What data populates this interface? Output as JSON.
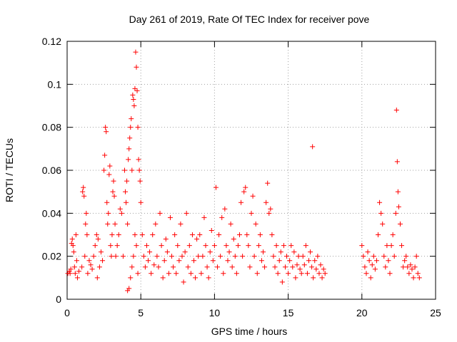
{
  "chart_data": {
    "type": "scatter",
    "title": "Day 261 of 2019, Rate Of TEC Index for receiver pove",
    "xlabel": "GPS time / hours",
    "ylabel": "ROTI / TECUs",
    "xlim": [
      0,
      25
    ],
    "ylim": [
      0,
      0.12
    ],
    "x_ticks": [
      "0",
      "5",
      "10",
      "15",
      "20",
      "25"
    ],
    "y_ticks": [
      "0",
      "0.02",
      "0.04",
      "0.06",
      "0.08",
      "0.1",
      "0.12"
    ],
    "grid": true,
    "marker": "+",
    "color": "#ff0000",
    "series": [
      {
        "points": [
          [
            0.05,
            0.012
          ],
          [
            0.15,
            0.013
          ],
          [
            0.2,
            0.012
          ],
          [
            0.25,
            0.014
          ],
          [
            0.3,
            0.026
          ],
          [
            0.35,
            0.028
          ],
          [
            0.4,
            0.025
          ],
          [
            0.45,
            0.022
          ],
          [
            0.5,
            0.015
          ],
          [
            0.55,
            0.012
          ],
          [
            0.6,
            0.03
          ],
          [
            0.65,
            0.018
          ],
          [
            0.7,
            0.01
          ],
          [
            0.8,
            0.013
          ],
          [
            1.0,
            0.015
          ],
          [
            1.05,
            0.05
          ],
          [
            1.1,
            0.052
          ],
          [
            1.15,
            0.048
          ],
          [
            1.2,
            0.02
          ],
          [
            1.25,
            0.035
          ],
          [
            1.3,
            0.04
          ],
          [
            1.35,
            0.03
          ],
          [
            1.4,
            0.012
          ],
          [
            1.5,
            0.018
          ],
          [
            1.6,
            0.016
          ],
          [
            1.7,
            0.014
          ],
          [
            1.8,
            0.02
          ],
          [
            1.9,
            0.025
          ],
          [
            2.0,
            0.03
          ],
          [
            2.05,
            0.01
          ],
          [
            2.1,
            0.028
          ],
          [
            2.2,
            0.015
          ],
          [
            2.3,
            0.022
          ],
          [
            2.4,
            0.018
          ],
          [
            2.5,
            0.06
          ],
          [
            2.55,
            0.067
          ],
          [
            2.6,
            0.08
          ],
          [
            2.65,
            0.078
          ],
          [
            2.7,
            0.045
          ],
          [
            2.75,
            0.035
          ],
          [
            2.8,
            0.04
          ],
          [
            2.85,
            0.058
          ],
          [
            2.9,
            0.062
          ],
          [
            2.95,
            0.025
          ],
          [
            3.0,
            0.02
          ],
          [
            3.05,
            0.03
          ],
          [
            3.1,
            0.05
          ],
          [
            3.15,
            0.055
          ],
          [
            3.2,
            0.048
          ],
          [
            3.25,
            0.035
          ],
          [
            3.3,
            0.02
          ],
          [
            3.4,
            0.025
          ],
          [
            3.5,
            0.03
          ],
          [
            3.6,
            0.042
          ],
          [
            3.7,
            0.04
          ],
          [
            3.8,
            0.02
          ],
          [
            3.9,
            0.06
          ],
          [
            3.95,
            0.05
          ],
          [
            4.0,
            0.045
          ],
          [
            4.05,
            0.055
          ],
          [
            4.1,
            0.035
          ],
          [
            4.15,
            0.065
          ],
          [
            4.2,
            0.07
          ],
          [
            4.25,
            0.075
          ],
          [
            4.3,
            0.08
          ],
          [
            4.35,
            0.084
          ],
          [
            4.4,
            0.06
          ],
          [
            4.45,
            0.095
          ],
          [
            4.5,
            0.093
          ],
          [
            4.55,
            0.09
          ],
          [
            4.6,
            0.098
          ],
          [
            4.65,
            0.115
          ],
          [
            4.7,
            0.108
          ],
          [
            4.75,
            0.097
          ],
          [
            4.8,
            0.08
          ],
          [
            4.85,
            0.065
          ],
          [
            4.9,
            0.06
          ],
          [
            4.95,
            0.055
          ],
          [
            4.1,
            0.004
          ],
          [
            4.2,
            0.005
          ],
          [
            4.3,
            0.01
          ],
          [
            4.4,
            0.015
          ],
          [
            4.5,
            0.02
          ],
          [
            4.6,
            0.03
          ],
          [
            4.7,
            0.025
          ],
          [
            4.8,
            0.012
          ],
          [
            5.0,
            0.045
          ],
          [
            5.1,
            0.03
          ],
          [
            5.2,
            0.02
          ],
          [
            5.3,
            0.015
          ],
          [
            5.4,
            0.025
          ],
          [
            5.5,
            0.018
          ],
          [
            5.6,
            0.022
          ],
          [
            5.7,
            0.012
          ],
          [
            5.8,
            0.03
          ],
          [
            5.9,
            0.016
          ],
          [
            6.0,
            0.035
          ],
          [
            6.1,
            0.02
          ],
          [
            6.2,
            0.015
          ],
          [
            6.3,
            0.04
          ],
          [
            6.4,
            0.025
          ],
          [
            6.5,
            0.01
          ],
          [
            6.6,
            0.018
          ],
          [
            6.7,
            0.028
          ],
          [
            6.8,
            0.022
          ],
          [
            6.9,
            0.012
          ],
          [
            7.0,
            0.038
          ],
          [
            7.1,
            0.02
          ],
          [
            7.2,
            0.015
          ],
          [
            7.3,
            0.03
          ],
          [
            7.4,
            0.012
          ],
          [
            7.5,
            0.025
          ],
          [
            7.6,
            0.018
          ],
          [
            7.7,
            0.035
          ],
          [
            7.8,
            0.02
          ],
          [
            7.9,
            0.008
          ],
          [
            8.0,
            0.022
          ],
          [
            8.1,
            0.04
          ],
          [
            8.2,
            0.015
          ],
          [
            8.3,
            0.025
          ],
          [
            8.4,
            0.012
          ],
          [
            8.5,
            0.03
          ],
          [
            8.6,
            0.018
          ],
          [
            8.7,
            0.01
          ],
          [
            8.8,
            0.028
          ],
          [
            8.9,
            0.02
          ],
          [
            9.0,
            0.03
          ],
          [
            9.1,
            0.012
          ],
          [
            9.2,
            0.02
          ],
          [
            9.3,
            0.038
          ],
          [
            9.4,
            0.025
          ],
          [
            9.5,
            0.015
          ],
          [
            9.6,
            0.01
          ],
          [
            9.7,
            0.022
          ],
          [
            9.8,
            0.032
          ],
          [
            9.9,
            0.018
          ],
          [
            10.0,
            0.025
          ],
          [
            10.1,
            0.052
          ],
          [
            10.2,
            0.015
          ],
          [
            10.3,
            0.03
          ],
          [
            10.4,
            0.02
          ],
          [
            10.5,
            0.038
          ],
          [
            10.6,
            0.012
          ],
          [
            10.7,
            0.042
          ],
          [
            10.8,
            0.025
          ],
          [
            10.9,
            0.018
          ],
          [
            11.0,
            0.022
          ],
          [
            11.1,
            0.035
          ],
          [
            11.2,
            0.015
          ],
          [
            11.3,
            0.028
          ],
          [
            11.4,
            0.02
          ],
          [
            11.5,
            0.012
          ],
          [
            11.6,
            0.025
          ],
          [
            11.7,
            0.03
          ],
          [
            11.8,
            0.045
          ],
          [
            11.9,
            0.02
          ],
          [
            12.0,
            0.05
          ],
          [
            12.1,
            0.052
          ],
          [
            12.2,
            0.03
          ],
          [
            12.3,
            0.025
          ],
          [
            12.4,
            0.015
          ],
          [
            12.5,
            0.04
          ],
          [
            12.6,
            0.048
          ],
          [
            12.7,
            0.02
          ],
          [
            12.8,
            0.035
          ],
          [
            12.9,
            0.012
          ],
          [
            13.0,
            0.025
          ],
          [
            13.1,
            0.03
          ],
          [
            13.2,
            0.018
          ],
          [
            13.3,
            0.022
          ],
          [
            13.4,
            0.015
          ],
          [
            13.5,
            0.045
          ],
          [
            13.6,
            0.054
          ],
          [
            13.7,
            0.04
          ],
          [
            13.8,
            0.042
          ],
          [
            13.9,
            0.03
          ],
          [
            14.0,
            0.02
          ],
          [
            14.1,
            0.015
          ],
          [
            14.2,
            0.025
          ],
          [
            14.3,
            0.012
          ],
          [
            14.4,
            0.018
          ],
          [
            14.5,
            0.022
          ],
          [
            14.6,
            0.008
          ],
          [
            14.7,
            0.025
          ],
          [
            14.8,
            0.015
          ],
          [
            14.9,
            0.02
          ],
          [
            15.0,
            0.012
          ],
          [
            15.1,
            0.018
          ],
          [
            15.2,
            0.025
          ],
          [
            15.3,
            0.015
          ],
          [
            15.4,
            0.022
          ],
          [
            15.5,
            0.01
          ],
          [
            15.6,
            0.016
          ],
          [
            15.7,
            0.02
          ],
          [
            15.8,
            0.014
          ],
          [
            15.9,
            0.012
          ],
          [
            16.0,
            0.02
          ],
          [
            16.1,
            0.016
          ],
          [
            16.2,
            0.025
          ],
          [
            16.3,
            0.012
          ],
          [
            16.4,
            0.018
          ],
          [
            16.5,
            0.022
          ],
          [
            16.6,
            0.015
          ],
          [
            16.65,
            0.071
          ],
          [
            16.7,
            0.01
          ],
          [
            16.8,
            0.018
          ],
          [
            16.9,
            0.014
          ],
          [
            17.0,
            0.02
          ],
          [
            17.1,
            0.012
          ],
          [
            17.2,
            0.016
          ],
          [
            17.3,
            0.01
          ],
          [
            17.4,
            0.014
          ],
          [
            17.5,
            0.012
          ],
          [
            20.0,
            0.025
          ],
          [
            20.1,
            0.02
          ],
          [
            20.2,
            0.015
          ],
          [
            20.3,
            0.012
          ],
          [
            20.4,
            0.022
          ],
          [
            20.5,
            0.018
          ],
          [
            20.6,
            0.01
          ],
          [
            20.7,
            0.016
          ],
          [
            20.8,
            0.02
          ],
          [
            20.9,
            0.014
          ],
          [
            21.0,
            0.018
          ],
          [
            21.1,
            0.03
          ],
          [
            21.2,
            0.045
          ],
          [
            21.3,
            0.04
          ],
          [
            21.4,
            0.035
          ],
          [
            21.5,
            0.02
          ],
          [
            21.6,
            0.015
          ],
          [
            21.7,
            0.025
          ],
          [
            21.8,
            0.018
          ],
          [
            21.9,
            0.012
          ],
          [
            22.0,
            0.025
          ],
          [
            22.1,
            0.03
          ],
          [
            22.2,
            0.02
          ],
          [
            22.3,
            0.04
          ],
          [
            22.35,
            0.088
          ],
          [
            22.4,
            0.064
          ],
          [
            22.45,
            0.05
          ],
          [
            22.5,
            0.043
          ],
          [
            22.6,
            0.035
          ],
          [
            22.7,
            0.025
          ],
          [
            22.8,
            0.015
          ],
          [
            22.9,
            0.018
          ],
          [
            23.0,
            0.02
          ],
          [
            23.1,
            0.015
          ],
          [
            23.2,
            0.012
          ],
          [
            23.3,
            0.016
          ],
          [
            23.4,
            0.014
          ],
          [
            23.5,
            0.01
          ],
          [
            23.6,
            0.015
          ],
          [
            23.7,
            0.02
          ],
          [
            23.8,
            0.012
          ],
          [
            23.9,
            0.01
          ]
        ]
      }
    ]
  }
}
